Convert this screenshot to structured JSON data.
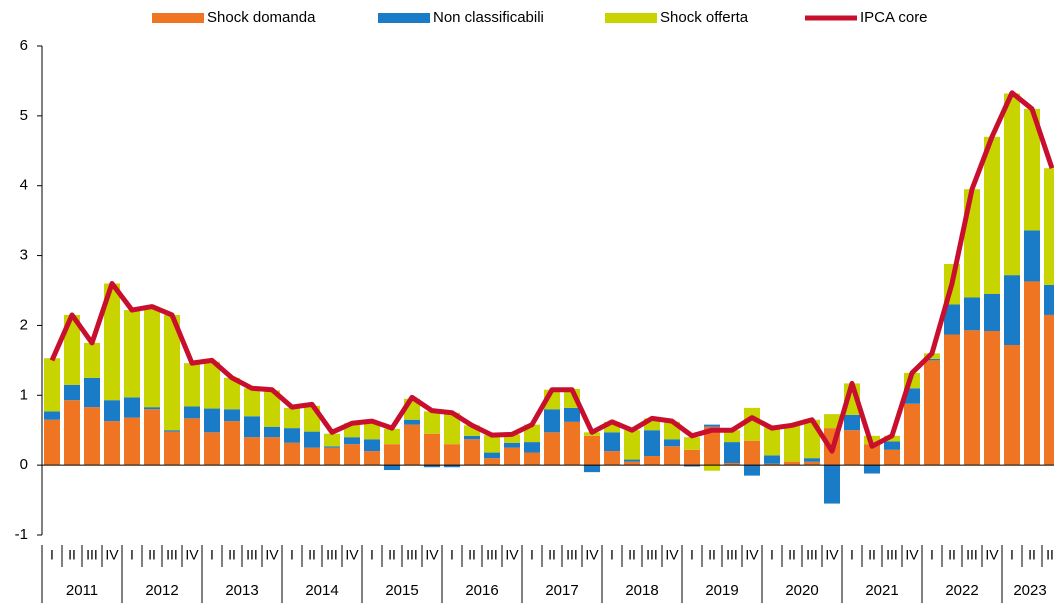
{
  "chart_data": {
    "type": "bar-line",
    "categories": [
      "I",
      "II",
      "III",
      "IV",
      "I",
      "II",
      "III",
      "IV",
      "I",
      "II",
      "III",
      "IV",
      "I",
      "II",
      "III",
      "IV",
      "I",
      "II",
      "III",
      "IV",
      "I",
      "II",
      "III",
      "IV",
      "I",
      "II",
      "III",
      "IV",
      "I",
      "II",
      "III",
      "IV",
      "I",
      "II",
      "III",
      "IV",
      "I",
      "II",
      "III",
      "IV",
      "I",
      "II",
      "III",
      "IV",
      "I",
      "II",
      "III",
      "IV",
      "I",
      "II",
      "III"
    ],
    "years": [
      "2011",
      "2012",
      "2013",
      "2014",
      "2015",
      "2016",
      "2017",
      "2018",
      "2019",
      "2020",
      "2021",
      "2022",
      "2023"
    ],
    "series": [
      {
        "name": "Shock domanda",
        "color": "#f07522",
        "kind": "bar",
        "values": [
          0.65,
          0.93,
          0.83,
          0.63,
          0.68,
          0.8,
          0.48,
          0.67,
          0.47,
          0.63,
          0.4,
          0.4,
          0.32,
          0.25,
          0.25,
          0.3,
          0.2,
          0.3,
          0.58,
          0.45,
          0.3,
          0.37,
          0.1,
          0.25,
          0.18,
          0.47,
          0.62,
          0.42,
          0.2,
          0.05,
          0.13,
          0.27,
          0.22,
          0.55,
          0.03,
          0.35,
          0.02,
          0.05,
          0.05,
          0.53,
          0.5,
          0.3,
          0.22,
          0.88,
          1.5,
          1.87,
          1.93,
          1.92,
          1.72,
          2.63,
          2.15
        ]
      },
      {
        "name": "Non classificabili",
        "color": "#1a7cc6",
        "kind": "bar",
        "values": [
          0.12,
          0.22,
          0.42,
          0.3,
          0.29,
          0.03,
          0.02,
          0.17,
          0.34,
          0.17,
          0.3,
          0.15,
          0.21,
          0.23,
          0.02,
          0.1,
          0.17,
          -0.07,
          0.07,
          -0.03,
          -0.03,
          0.05,
          0.08,
          0.07,
          0.15,
          0.33,
          0.2,
          -0.1,
          0.27,
          0.03,
          0.37,
          0.1,
          -0.02,
          0.03,
          0.3,
          -0.15,
          0.12,
          0.0,
          0.05,
          -0.55,
          0.22,
          -0.12,
          0.12,
          0.22,
          0.02,
          0.43,
          0.47,
          0.53,
          1.0,
          0.73,
          0.43
        ]
      },
      {
        "name": "Shock offerta",
        "color": "#c8d400",
        "kind": "bar",
        "values": [
          0.76,
          1.0,
          0.5,
          1.67,
          1.25,
          1.42,
          1.65,
          0.62,
          0.67,
          0.45,
          0.4,
          0.52,
          0.29,
          0.37,
          0.18,
          0.2,
          0.25,
          0.22,
          0.3,
          0.32,
          0.45,
          0.15,
          0.25,
          0.12,
          0.25,
          0.28,
          0.27,
          0.05,
          0.15,
          0.42,
          0.17,
          0.25,
          0.18,
          -0.08,
          0.17,
          0.47,
          0.4,
          0.52,
          0.55,
          0.2,
          0.45,
          0.12,
          0.08,
          0.22,
          0.08,
          0.58,
          1.55,
          2.25,
          2.6,
          1.74,
          1.67
        ]
      },
      {
        "name": "IPCA core",
        "color": "#c8102e",
        "kind": "line",
        "values": [
          1.5,
          2.15,
          1.75,
          2.6,
          2.22,
          2.27,
          2.15,
          1.46,
          1.5,
          1.25,
          1.1,
          1.08,
          0.83,
          0.87,
          0.47,
          0.6,
          0.63,
          0.53,
          0.97,
          0.78,
          0.75,
          0.57,
          0.43,
          0.44,
          0.58,
          1.08,
          1.08,
          0.47,
          0.62,
          0.5,
          0.67,
          0.63,
          0.42,
          0.5,
          0.5,
          0.68,
          0.53,
          0.57,
          0.65,
          0.2,
          1.17,
          0.27,
          0.42,
          1.32,
          1.6,
          2.6,
          3.95,
          4.7,
          5.33,
          5.1,
          4.25
        ]
      }
    ],
    "ylim": [
      -1,
      6
    ],
    "yticks": [
      -1,
      0,
      1,
      2,
      3,
      4,
      5,
      6
    ]
  }
}
